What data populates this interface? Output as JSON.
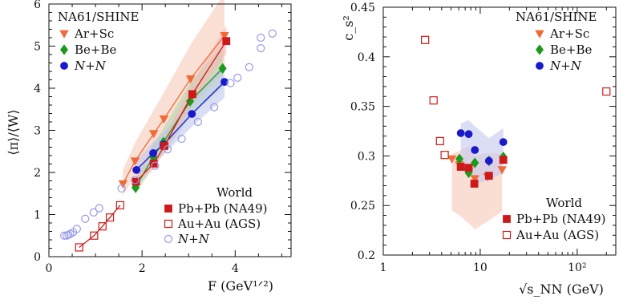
{
  "chart_data": [
    {
      "type": "scatter",
      "xlabel": "F (GeV¹ᐟ²)",
      "ylabel": "⟨π⟩/⟨W⟩",
      "xlim": [
        0,
        5.2
      ],
      "ylim": [
        0,
        6
      ],
      "x_ticks": [
        "0",
        "2",
        "4"
      ],
      "y_ticks": [
        "0",
        "1",
        "2",
        "3",
        "4",
        "5",
        "6"
      ],
      "x_tick_values": [
        0,
        2,
        4
      ],
      "y_tick_values": [
        0,
        1,
        2,
        3,
        4,
        5,
        6
      ],
      "legend_top_title": "NA61/SHINE",
      "legend_bottom_title": "World",
      "legend_position": "top-left and bottom-right",
      "series": [
        {
          "name": "Ar+Sc",
          "marker": "tri-down",
          "filled": true,
          "connect": true,
          "color": "#f06a3a",
          "band": "#f6c6b0",
          "x": [
            1.59,
            1.85,
            2.25,
            2.47,
            3.04,
            3.77
          ],
          "y": [
            1.73,
            2.27,
            2.92,
            3.27,
            4.22,
            5.25
          ]
        },
        {
          "name": "Be+Be",
          "marker": "diamond",
          "filled": true,
          "connect": true,
          "color": "#1a9a1a",
          "band": "#a9d7a9",
          "x": [
            1.86,
            2.24,
            2.46,
            3.03,
            3.73
          ],
          "y": [
            1.64,
            2.37,
            2.72,
            3.69,
            4.47
          ]
        },
        {
          "name": "N+N",
          "marker": "circle",
          "filled": true,
          "connect": true,
          "color": "#1a1acc",
          "band": "#b9c3ec",
          "x": [
            1.88,
            2.24,
            2.46,
            3.07,
            3.77
          ],
          "y": [
            2.06,
            2.46,
            2.66,
            3.39,
            4.15
          ]
        },
        {
          "name": "Pb+Pb (NA49)",
          "marker": "square",
          "filled": true,
          "connect": true,
          "color": "#cc1a1a",
          "band": "#f3b8b4",
          "x": [
            1.87,
            2.25,
            2.48,
            3.08,
            3.81
          ],
          "y": [
            1.78,
            2.21,
            2.63,
            3.86,
            5.12
          ]
        },
        {
          "name": "Au+Au (AGS)",
          "marker": "square",
          "filled": false,
          "connect": true,
          "color": "#cc1a1a",
          "x": [
            0.65,
            0.97,
            1.15,
            1.31,
            1.53
          ],
          "y": [
            0.22,
            0.5,
            0.72,
            0.93,
            1.22
          ]
        },
        {
          "name": "N+N",
          "marker": "circle",
          "filled": false,
          "connect": false,
          "color": "#9a9ae6",
          "x": [
            0.33,
            0.38,
            0.42,
            0.46,
            0.52,
            0.6,
            0.78,
            0.96,
            1.08,
            1.56,
            1.85,
            2.28,
            2.55,
            2.85,
            3.2,
            3.55,
            3.9,
            4.05,
            4.3,
            4.55,
            4.55,
            4.8
          ],
          "y": [
            0.5,
            0.5,
            0.52,
            0.54,
            0.58,
            0.66,
            0.9,
            1.05,
            1.15,
            1.62,
            1.82,
            2.16,
            2.55,
            2.8,
            3.2,
            3.55,
            4.12,
            4.25,
            4.5,
            4.95,
            5.2,
            5.3
          ]
        }
      ]
    },
    {
      "type": "scatter",
      "xlabel": "√s_NN (GeV)",
      "ylabel": "c_s²",
      "x_scale": "log",
      "xlim": [
        1,
        250
      ],
      "ylim": [
        0.2,
        0.45
      ],
      "x_ticks": [
        "1",
        "10",
        "10²"
      ],
      "y_ticks": [
        "0.2",
        "0.25",
        "0.3",
        "0.35",
        "0.4",
        "0.45"
      ],
      "x_tick_values": [
        1,
        10,
        100
      ],
      "y_tick_values": [
        0.2,
        0.25,
        0.3,
        0.35,
        0.4,
        0.45
      ],
      "legend_top_title": "NA61/SHINE",
      "legend_bottom_title": "World",
      "legend_position": "top-right and bottom-right",
      "series": [
        {
          "name": "Ar+Sc",
          "marker": "tri-down",
          "filled": true,
          "connect": false,
          "color": "#f06a3a",
          "x": [
            5.1,
            6.1,
            7.6,
            8.8,
            11.9,
            16.8
          ],
          "y": [
            0.297,
            0.291,
            0.284,
            0.277,
            0.279,
            0.286
          ]
        },
        {
          "name": "Be+Be",
          "marker": "diamond",
          "filled": true,
          "connect": false,
          "color": "#1a9a1a",
          "x": [
            6.1,
            7.6,
            8.8,
            12.3,
            17.3
          ],
          "y": [
            0.297,
            0.283,
            0.293,
            0.295,
            0.299
          ]
        },
        {
          "name": "N+N",
          "marker": "circle",
          "filled": true,
          "connect": false,
          "color": "#1a1acc",
          "x": [
            6.3,
            7.6,
            8.8,
            12.3,
            17.3
          ],
          "y": [
            0.323,
            0.322,
            0.306,
            0.295,
            0.314
          ]
        },
        {
          "name": "Pb+Pb (NA49)",
          "marker": "square",
          "filled": true,
          "connect": false,
          "color": "#cc1a1a",
          "x": [
            6.3,
            7.6,
            8.7,
            12.3,
            17.3
          ],
          "y": [
            0.289,
            0.288,
            0.272,
            0.28,
            0.296
          ]
        },
        {
          "name": "Au+Au (AGS)",
          "marker": "square",
          "filled": false,
          "connect": false,
          "color": "#cc1a1a",
          "x": [
            2.7,
            3.3,
            3.85,
            4.3,
            200
          ],
          "y": [
            0.417,
            0.356,
            0.315,
            0.301,
            0.365
          ]
        }
      ],
      "bands": [
        {
          "color": "#f6c8b8",
          "x": [
            5.1,
            6.1,
            7.6,
            8.8,
            11.9,
            16.8
          ],
          "lo": [
            0.245,
            0.24,
            0.232,
            0.226,
            0.234,
            0.244
          ],
          "hi": [
            0.302,
            0.305,
            0.31,
            0.3,
            0.303,
            0.302
          ]
        },
        {
          "color": "#c4c8ee",
          "x": [
            6.3,
            7.6,
            8.8,
            12.3,
            17.3
          ],
          "lo": [
            0.285,
            0.285,
            0.272,
            0.275,
            0.283
          ],
          "hi": [
            0.333,
            0.336,
            0.33,
            0.318,
            0.328
          ]
        }
      ]
    }
  ]
}
